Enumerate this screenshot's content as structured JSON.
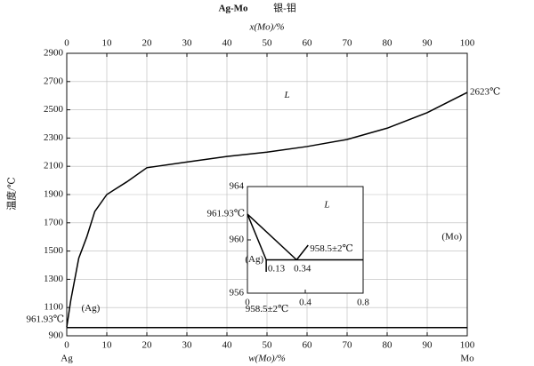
{
  "chart_data": [
    {
      "type": "phase",
      "title": "Ag-Mo",
      "subtitle": "银-钼",
      "xlabel_top": "x(Mo)/%",
      "xlabel": "w(Mo)/%",
      "ylabel": "温度/℃",
      "left_end_label": "Ag",
      "right_end_label": "Mo",
      "grid": true,
      "xlim": [
        0,
        100
      ],
      "xticks": [
        0,
        10,
        20,
        30,
        40,
        50,
        60,
        70,
        80,
        90,
        100
      ],
      "x2ticks": [
        0,
        10,
        20,
        30,
        40,
        50,
        60,
        70,
        80,
        90,
        100
      ],
      "ylim": [
        900,
        2900
      ],
      "yticks": [
        900,
        1100,
        1300,
        1500,
        1700,
        1900,
        2100,
        2300,
        2500,
        2700,
        2900
      ],
      "series": [
        {
          "color": "#000000",
          "x": [
            0,
            1,
            2,
            3,
            5,
            7,
            10,
            15,
            20,
            30,
            40,
            50,
            60,
            70,
            80,
            90,
            100
          ],
          "values": [
            961.93,
            1150,
            1300,
            1450,
            1600,
            1780,
            1900,
            1990,
            2090,
            2130,
            2170,
            2200,
            2240,
            2290,
            2370,
            2480,
            2623
          ]
        },
        {
          "color": "#000000",
          "x": [
            0,
            100
          ],
          "values": [
            958.5,
            958.5
          ]
        }
      ],
      "annotations": [
        {
          "text": "L",
          "x": 55,
          "y": 2600
        },
        {
          "text": "2623℃",
          "x": 100,
          "y": 2623
        },
        {
          "text": "961.93℃",
          "x": 0,
          "y": 961.93
        },
        {
          "text": "(Ag)",
          "x": 3,
          "y": 1030
        },
        {
          "text": "958.5±2℃",
          "x": 50,
          "y": 1030
        },
        {
          "text": "(Mo)",
          "x": 100,
          "y": 1580
        }
      ]
    },
    {
      "type": "phase",
      "grid": false,
      "xlim": [
        0,
        0.8
      ],
      "xticks": [
        0,
        0.4,
        0.8
      ],
      "ylim": [
        956,
        964
      ],
      "yticks": [
        956,
        960,
        964
      ],
      "series": [
        {
          "color": "#000000",
          "x": [
            0,
            0.34
          ],
          "values": [
            961.93,
            958.5
          ]
        },
        {
          "color": "#000000",
          "x": [
            0,
            0.13,
            0.13
          ],
          "values": [
            961.93,
            958.5,
            957.6
          ]
        },
        {
          "color": "#000000",
          "x": [
            0.13,
            0.8
          ],
          "values": [
            958.5,
            958.5
          ]
        },
        {
          "color": "#000000",
          "x": [
            0.34,
            0.42
          ],
          "values": [
            958.5,
            959.6
          ]
        }
      ],
      "annotations": [
        {
          "text": "961.93℃",
          "x": 0,
          "y": 961.93
        },
        {
          "text": "L",
          "x": 0.55,
          "y": 962.6
        },
        {
          "text": "(Ag)",
          "x": 0.13,
          "y": 958.5
        },
        {
          "text": "0.13",
          "x": 0.2,
          "y": 957.8
        },
        {
          "text": "0.34",
          "x": 0.38,
          "y": 957.8
        },
        {
          "text": "958.5±2℃",
          "x": 0.42,
          "y": 959.3
        }
      ]
    }
  ]
}
